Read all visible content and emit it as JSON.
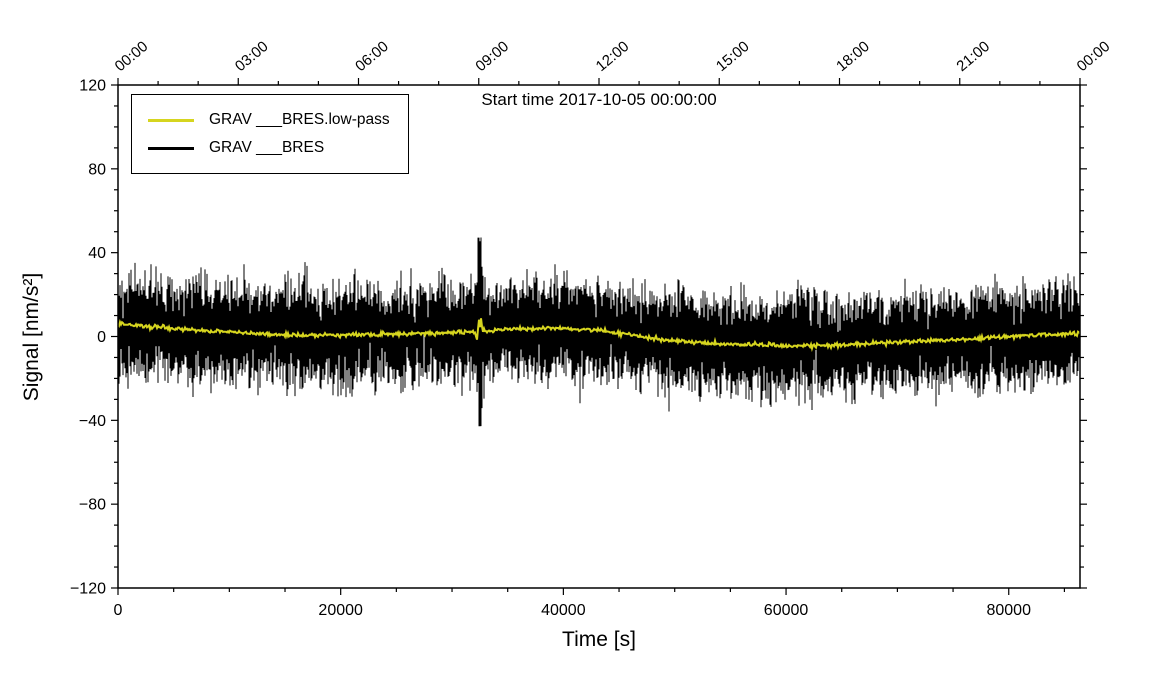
{
  "chart_data": {
    "type": "line",
    "title": "Start time 2017-10-05 00:00:00",
    "xlabel": "Time [s]",
    "ylabel": "Signal [nm/s²]",
    "xlim": [
      0,
      86400
    ],
    "ylim": [
      -120,
      120
    ],
    "grid": false,
    "x_ticks": [
      0,
      20000,
      40000,
      60000,
      80000
    ],
    "x_minor_step": 5000,
    "y_ticks": [
      -120,
      -80,
      -40,
      0,
      40,
      80,
      120
    ],
    "y_minor_step": 10,
    "top_axis": {
      "seconds": [
        0,
        10800,
        21600,
        32400,
        43200,
        54000,
        64800,
        75600,
        86400
      ],
      "labels": [
        "00:00",
        "03:00",
        "06:00",
        "09:00",
        "12:00",
        "15:00",
        "18:00",
        "21:00",
        "00:00"
      ],
      "minor_step": 3600
    },
    "legend": {
      "position": "top-left",
      "entries": [
        {
          "label": "GRAV ___BRES.low-pass",
          "color": "#d6d51f"
        },
        {
          "label": "GRAV ___BRES",
          "color": "#000000"
        }
      ]
    },
    "series": [
      {
        "name": "GRAV ___BRES",
        "style": "noise",
        "color": "#000000",
        "mean": "follows low-pass series",
        "sigma": 10.5,
        "samples_per_column": 16,
        "typical_peak_nm_s2": 25,
        "max_peak_nm_s2": 42
      },
      {
        "name": "GRAV ___BRES.low-pass",
        "style": "line",
        "color": "#d6d51f",
        "width": 2,
        "burst": {
          "t": 32500,
          "amplitude": 8,
          "width_s": 260
        },
        "points": [
          [
            0,
            6.0
          ],
          [
            3000,
            4.5
          ],
          [
            6000,
            3.5
          ],
          [
            9000,
            2.5
          ],
          [
            12000,
            1.5
          ],
          [
            15000,
            0.8
          ],
          [
            18000,
            0.5
          ],
          [
            21000,
            0.6
          ],
          [
            24000,
            1.0
          ],
          [
            27000,
            1.5
          ],
          [
            30000,
            1.8
          ],
          [
            32500,
            2.2
          ],
          [
            34000,
            3.0
          ],
          [
            36000,
            3.8
          ],
          [
            38000,
            4.0
          ],
          [
            40000,
            3.8
          ],
          [
            42000,
            3.5
          ],
          [
            43500,
            3.0
          ],
          [
            45000,
            1.5
          ],
          [
            47000,
            0.0
          ],
          [
            49000,
            -1.5
          ],
          [
            51000,
            -2.5
          ],
          [
            53000,
            -3.2
          ],
          [
            55000,
            -3.6
          ],
          [
            57000,
            -3.8
          ],
          [
            59000,
            -4.2
          ],
          [
            61000,
            -4.5
          ],
          [
            63000,
            -4.3
          ],
          [
            65000,
            -4.0
          ],
          [
            67000,
            -3.5
          ],
          [
            69000,
            -3.0
          ],
          [
            71000,
            -2.5
          ],
          [
            73000,
            -2.0
          ],
          [
            75000,
            -1.5
          ],
          [
            77000,
            -1.0
          ],
          [
            79000,
            -0.3
          ],
          [
            81000,
            0.3
          ],
          [
            83000,
            0.8
          ],
          [
            85000,
            1.2
          ],
          [
            86400,
            1.5
          ]
        ]
      }
    ]
  }
}
